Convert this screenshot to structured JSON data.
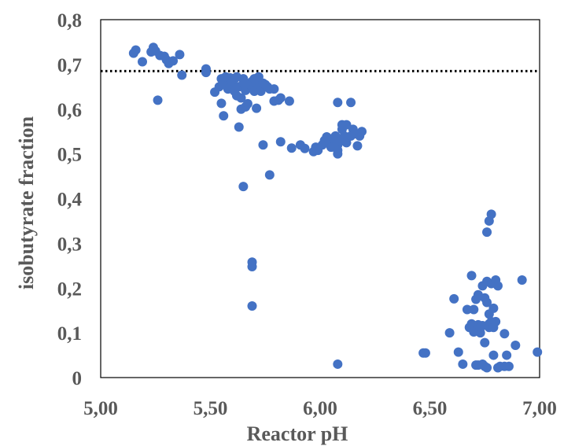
{
  "chart_data": {
    "type": "scatter",
    "xlabel": "Reactor pH",
    "ylabel": "isobutyrate fraction",
    "xlim": [
      5.0,
      7.0
    ],
    "ylim": [
      0.0,
      0.8
    ],
    "x_ticks": [
      "5,00",
      "5,50",
      "6,00",
      "6,50",
      "7,00"
    ],
    "y_ticks": [
      "0",
      "0,1",
      "0,2",
      "0,3",
      "0,4",
      "0,5",
      "0,6",
      "0,7",
      "0,8"
    ],
    "grid": false,
    "legend": "none",
    "reference_line": {
      "y": 0.685,
      "style": "dotted",
      "color": "#000000"
    },
    "marker_color": "#4472C4",
    "series": [
      {
        "points": [
          [
            5.15,
            0.725
          ],
          [
            5.16,
            0.732
          ],
          [
            5.19,
            0.706
          ],
          [
            5.23,
            0.728
          ],
          [
            5.24,
            0.738
          ],
          [
            5.25,
            0.73
          ],
          [
            5.27,
            0.72
          ],
          [
            5.29,
            0.718
          ],
          [
            5.3,
            0.71
          ],
          [
            5.31,
            0.702
          ],
          [
            5.33,
            0.708
          ],
          [
            5.36,
            0.722
          ],
          [
            5.37,
            0.676
          ],
          [
            5.26,
            0.62
          ],
          [
            5.48,
            0.69
          ],
          [
            5.48,
            0.682
          ],
          [
            5.52,
            0.638
          ],
          [
            5.54,
            0.65
          ],
          [
            5.55,
            0.668
          ],
          [
            5.56,
            0.66
          ],
          [
            5.55,
            0.613
          ],
          [
            5.56,
            0.585
          ],
          [
            5.57,
            0.672
          ],
          [
            5.58,
            0.645
          ],
          [
            5.59,
            0.67
          ],
          [
            5.6,
            0.655
          ],
          [
            5.6,
            0.662
          ],
          [
            5.61,
            0.64
          ],
          [
            5.61,
            0.668
          ],
          [
            5.62,
            0.672
          ],
          [
            5.62,
            0.63
          ],
          [
            5.63,
            0.65
          ],
          [
            5.63,
            0.56
          ],
          [
            5.64,
            0.625
          ],
          [
            5.64,
            0.6
          ],
          [
            5.65,
            0.668
          ],
          [
            5.65,
            0.658
          ],
          [
            5.66,
            0.642
          ],
          [
            5.66,
            0.605
          ],
          [
            5.67,
            0.612
          ],
          [
            5.68,
            0.655
          ],
          [
            5.69,
            0.65
          ],
          [
            5.69,
            0.662
          ],
          [
            5.7,
            0.64
          ],
          [
            5.7,
            0.668
          ],
          [
            5.71,
            0.658
          ],
          [
            5.71,
            0.602
          ],
          [
            5.72,
            0.672
          ],
          [
            5.72,
            0.648
          ],
          [
            5.73,
            0.64
          ],
          [
            5.74,
            0.658
          ],
          [
            5.75,
            0.655
          ],
          [
            5.76,
            0.65
          ],
          [
            5.77,
            0.645
          ],
          [
            5.79,
            0.645
          ],
          [
            5.79,
            0.618
          ],
          [
            5.81,
            0.62
          ],
          [
            5.82,
            0.625
          ],
          [
            5.86,
            0.618
          ],
          [
            5.74,
            0.52
          ],
          [
            5.77,
            0.453
          ],
          [
            5.82,
            0.527
          ],
          [
            5.65,
            0.427
          ],
          [
            5.69,
            0.258
          ],
          [
            5.69,
            0.248
          ],
          [
            5.69,
            0.16
          ],
          [
            5.87,
            0.513
          ],
          [
            5.91,
            0.52
          ],
          [
            5.93,
            0.512
          ],
          [
            5.97,
            0.505
          ],
          [
            5.98,
            0.515
          ],
          [
            5.99,
            0.508
          ],
          [
            6.01,
            0.52
          ],
          [
            6.02,
            0.53
          ],
          [
            6.03,
            0.538
          ],
          [
            6.04,
            0.525
          ],
          [
            6.05,
            0.515
          ],
          [
            6.06,
            0.535
          ],
          [
            6.07,
            0.54
          ],
          [
            6.08,
            0.52
          ],
          [
            6.08,
            0.508
          ],
          [
            6.08,
            0.5
          ],
          [
            6.09,
            0.528
          ],
          [
            6.1,
            0.555
          ],
          [
            6.1,
            0.565
          ],
          [
            6.11,
            0.54
          ],
          [
            6.12,
            0.565
          ],
          [
            6.12,
            0.525
          ],
          [
            6.14,
            0.54
          ],
          [
            6.15,
            0.555
          ],
          [
            6.16,
            0.545
          ],
          [
            6.17,
            0.518
          ],
          [
            6.18,
            0.54
          ],
          [
            6.19,
            0.55
          ],
          [
            6.08,
            0.615
          ],
          [
            6.14,
            0.615
          ],
          [
            6.08,
            0.03
          ],
          [
            6.47,
            0.055
          ],
          [
            6.48,
            0.055
          ],
          [
            6.59,
            0.1
          ],
          [
            6.61,
            0.176
          ],
          [
            6.63,
            0.057
          ],
          [
            6.65,
            0.03
          ],
          [
            6.67,
            0.152
          ],
          [
            6.68,
            0.112
          ],
          [
            6.69,
            0.12
          ],
          [
            6.69,
            0.228
          ],
          [
            6.7,
            0.152
          ],
          [
            6.7,
            0.102
          ],
          [
            6.71,
            0.028
          ],
          [
            6.71,
            0.175
          ],
          [
            6.72,
            0.028
          ],
          [
            6.72,
            0.118
          ],
          [
            6.72,
            0.185
          ],
          [
            6.73,
            0.1
          ],
          [
            6.73,
            0.112
          ],
          [
            6.74,
            0.03
          ],
          [
            6.74,
            0.116
          ],
          [
            6.74,
            0.205
          ],
          [
            6.75,
            0.078
          ],
          [
            6.75,
            0.178
          ],
          [
            6.75,
            0.025
          ],
          [
            6.76,
            0.325
          ],
          [
            6.76,
            0.022
          ],
          [
            6.76,
            0.215
          ],
          [
            6.76,
            0.168
          ],
          [
            6.77,
            0.35
          ],
          [
            6.77,
            0.142
          ],
          [
            6.77,
            0.12
          ],
          [
            6.77,
            0.112
          ],
          [
            6.78,
            0.365
          ],
          [
            6.78,
            0.125
          ],
          [
            6.78,
            0.21
          ],
          [
            6.79,
            0.05
          ],
          [
            6.79,
            0.155
          ],
          [
            6.79,
            0.112
          ],
          [
            6.8,
            0.218
          ],
          [
            6.8,
            0.125
          ],
          [
            6.81,
            0.022
          ],
          [
            6.81,
            0.205
          ],
          [
            6.82,
            0.025
          ],
          [
            6.84,
            0.025
          ],
          [
            6.84,
            0.098
          ],
          [
            6.85,
            0.05
          ],
          [
            6.86,
            0.025
          ],
          [
            6.89,
            0.072
          ],
          [
            6.92,
            0.218
          ],
          [
            6.99,
            0.057
          ]
        ]
      }
    ]
  }
}
